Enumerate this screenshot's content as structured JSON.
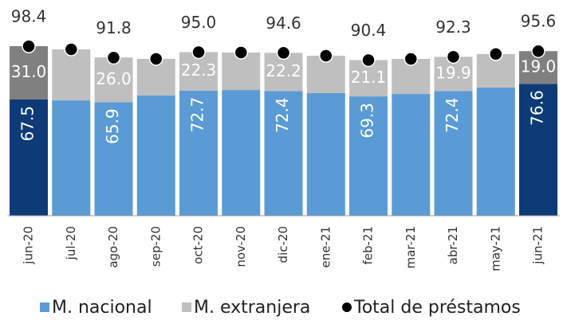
{
  "chart_data": {
    "type": "stacked-bar",
    "categories": [
      "jun-20",
      "jul-20",
      "ago-20",
      "sep-20",
      "oct-20",
      "nov-20",
      "dic-20",
      "ene-21",
      "feb-21",
      "mar-21",
      "abr-21",
      "may-21",
      "jun-21"
    ],
    "ylim": [
      0,
      100
    ],
    "series": [
      {
        "name": "M. nacional",
        "color": "#5b9bd5",
        "colors": [
          "#0e3a78",
          "#5b9bd5",
          "#5b9bd5",
          "#5b9bd5",
          "#5b9bd5",
          "#5b9bd5",
          "#5b9bd5",
          "#5b9bd5",
          "#5b9bd5",
          "#5b9bd5",
          "#5b9bd5",
          "#5b9bd5",
          "#0e3a78"
        ],
        "values": [
          67.5,
          67.0,
          65.9,
          69.8,
          72.7,
          73.0,
          72.4,
          71.2,
          69.3,
          70.7,
          72.4,
          74.4,
          76.6
        ],
        "value_labels": [
          "67.5",
          null,
          "65.9",
          null,
          "72.7",
          null,
          "72.4",
          null,
          "69.3",
          null,
          "72.4",
          null,
          "76.6"
        ]
      },
      {
        "name": "M. extranjera",
        "color": "#bfbfbf",
        "colors": [
          "#808080",
          "#bfbfbf",
          "#bfbfbf",
          "#bfbfbf",
          "#bfbfbf",
          "#bfbfbf",
          "#bfbfbf",
          "#bfbfbf",
          "#bfbfbf",
          "#bfbfbf",
          "#bfbfbf",
          "#bfbfbf",
          "#808080"
        ],
        "values": [
          31.0,
          29.6,
          26.0,
          21.3,
          22.3,
          21.8,
          22.2,
          21.7,
          21.1,
          20.4,
          19.9,
          19.5,
          19.0
        ],
        "value_labels": [
          "31.0",
          null,
          "26.0",
          null,
          "22.3",
          null,
          "22.2",
          null,
          "21.1",
          null,
          "19.9",
          null,
          "19.0"
        ]
      },
      {
        "name": "Total de préstamos",
        "type": "scatter",
        "color": "#000000",
        "values": [
          98.4,
          96.6,
          91.8,
          91.1,
          95.0,
          94.8,
          94.6,
          92.9,
          90.4,
          91.1,
          92.3,
          93.9,
          95.6
        ],
        "value_labels": [
          "98.4",
          null,
          "91.8",
          null,
          "95.0",
          null,
          "94.6",
          null,
          "90.4",
          null,
          "92.3",
          null,
          "95.6"
        ]
      }
    ],
    "legend": "bottom"
  }
}
